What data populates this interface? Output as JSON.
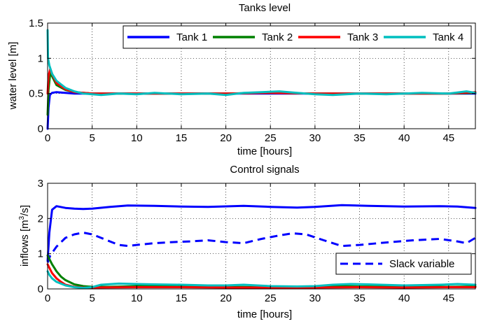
{
  "chart_data": [
    {
      "type": "line",
      "title": "Tanks level",
      "xlabel": "time [hours]",
      "ylabel": "water level [m]",
      "xlim": [
        0,
        48
      ],
      "ylim": [
        0,
        1.5
      ],
      "xticks": [
        "0",
        "5",
        "10",
        "15",
        "20",
        "25",
        "30",
        "35",
        "40",
        "45"
      ],
      "yticks": [
        "0",
        "0.5",
        "1",
        "1.5"
      ],
      "grid": true,
      "legend": "top-right, horizontal",
      "series": [
        {
          "name": "Tank 1",
          "color": "#0000ff",
          "style": "solid",
          "x": [
            0,
            0.1,
            0.25,
            0.5,
            1,
            2,
            3,
            5,
            10,
            15,
            20,
            25,
            30,
            35,
            40,
            45,
            48
          ],
          "y": [
            0.0,
            0.3,
            0.48,
            0.51,
            0.52,
            0.51,
            0.5,
            0.5,
            0.5,
            0.5,
            0.5,
            0.5,
            0.5,
            0.5,
            0.5,
            0.5,
            0.5
          ]
        },
        {
          "name": "Tank 2",
          "color": "#008000",
          "style": "solid",
          "x": [
            0,
            0.1,
            0.3,
            0.6,
            1,
            2,
            3,
            5,
            10,
            15,
            20,
            25,
            30,
            35,
            40,
            45,
            48
          ],
          "y": [
            0.2,
            0.55,
            0.8,
            0.72,
            0.62,
            0.55,
            0.52,
            0.5,
            0.5,
            0.5,
            0.5,
            0.51,
            0.5,
            0.5,
            0.5,
            0.5,
            0.51
          ]
        },
        {
          "name": "Tank 3",
          "color": "#ff0000",
          "style": "solid",
          "x": [
            0,
            0.1,
            0.3,
            0.6,
            1,
            2,
            3,
            5,
            10,
            15,
            20,
            25,
            30,
            35,
            40,
            45,
            48
          ],
          "y": [
            0.5,
            0.75,
            0.85,
            0.75,
            0.65,
            0.56,
            0.52,
            0.5,
            0.5,
            0.5,
            0.5,
            0.51,
            0.5,
            0.5,
            0.5,
            0.5,
            0.52
          ]
        },
        {
          "name": "Tank 4",
          "color": "#00bfbf",
          "style": "solid",
          "x": [
            0,
            0.05,
            0.2,
            0.5,
            1,
            2,
            3,
            4,
            5,
            6,
            8,
            10,
            12,
            15,
            18,
            20,
            22,
            24,
            26,
            28,
            30,
            32,
            35,
            38,
            40,
            42,
            45,
            47,
            48
          ],
          "y": [
            1.4,
            1.0,
            0.9,
            0.78,
            0.68,
            0.58,
            0.53,
            0.5,
            0.49,
            0.48,
            0.5,
            0.49,
            0.51,
            0.49,
            0.5,
            0.48,
            0.51,
            0.52,
            0.53,
            0.51,
            0.49,
            0.48,
            0.5,
            0.49,
            0.5,
            0.51,
            0.5,
            0.53,
            0.51
          ]
        }
      ]
    },
    {
      "type": "line",
      "title": "Control signals",
      "xlabel": "time [hours]",
      "ylabel": "inflows [m³/s]",
      "ylabel_main": "inflows [m",
      "ylabel_sup": "3",
      "ylabel_tail": "/s]",
      "xlim": [
        0,
        48
      ],
      "ylim": [
        0,
        3
      ],
      "xticks": [
        "0",
        "5",
        "10",
        "15",
        "20",
        "25",
        "30",
        "35",
        "40",
        "45"
      ],
      "yticks": [
        "0",
        "1",
        "2",
        "3"
      ],
      "grid": true,
      "legend": "bottom-right",
      "series": [
        {
          "name": "",
          "color": "#0000ff",
          "style": "solid",
          "x": [
            0,
            0.2,
            0.5,
            1,
            2,
            3,
            4,
            5,
            7,
            9,
            12,
            15,
            18,
            22,
            25,
            28,
            30,
            33,
            36,
            40,
            44,
            46,
            48
          ],
          "y": [
            0.8,
            1.6,
            2.25,
            2.35,
            2.3,
            2.28,
            2.27,
            2.28,
            2.33,
            2.37,
            2.36,
            2.34,
            2.33,
            2.36,
            2.33,
            2.31,
            2.33,
            2.38,
            2.36,
            2.34,
            2.35,
            2.34,
            2.3
          ]
        },
        {
          "name": "Slack variable",
          "color": "#0000ff",
          "style": "dashed",
          "x": [
            0,
            0.3,
            1,
            2,
            3,
            4,
            5,
            6,
            7,
            8,
            9,
            10,
            12,
            14,
            16,
            18,
            20,
            22,
            24,
            26,
            27.5,
            29,
            31,
            32,
            33,
            35,
            38,
            41,
            44,
            46,
            47,
            48
          ],
          "y": [
            0.75,
            0.95,
            1.2,
            1.45,
            1.55,
            1.6,
            1.55,
            1.45,
            1.35,
            1.25,
            1.22,
            1.25,
            1.3,
            1.33,
            1.35,
            1.38,
            1.33,
            1.3,
            1.42,
            1.52,
            1.58,
            1.55,
            1.38,
            1.3,
            1.22,
            1.25,
            1.32,
            1.38,
            1.42,
            1.35,
            1.3,
            1.45
          ]
        },
        {
          "name": "",
          "color": "#008000",
          "style": "solid",
          "x": [
            0,
            0.2,
            0.5,
            1,
            1.5,
            2,
            3,
            4,
            5,
            7,
            10,
            15,
            20,
            25,
            30,
            33,
            35,
            40,
            45,
            48
          ],
          "y": [
            0.95,
            0.85,
            0.7,
            0.5,
            0.35,
            0.25,
            0.13,
            0.08,
            0.06,
            0.06,
            0.08,
            0.07,
            0.06,
            0.05,
            0.05,
            0.08,
            0.07,
            0.06,
            0.06,
            0.07
          ]
        },
        {
          "name": "",
          "color": "#ff0000",
          "style": "solid",
          "x": [
            0,
            0.2,
            0.5,
            1,
            1.5,
            2,
            3,
            4,
            5,
            10,
            15,
            20,
            25,
            30,
            35,
            40,
            45,
            48
          ],
          "y": [
            0.7,
            0.6,
            0.45,
            0.3,
            0.2,
            0.12,
            0.06,
            0.04,
            0.04,
            0.05,
            0.05,
            0.04,
            0.04,
            0.04,
            0.05,
            0.04,
            0.05,
            0.05
          ]
        },
        {
          "name": "",
          "color": "#00bfbf",
          "style": "solid",
          "x": [
            0,
            0.2,
            0.5,
            1,
            2,
            3,
            4,
            5,
            6,
            8,
            10,
            12,
            15,
            18,
            20,
            22,
            25,
            28,
            30,
            32,
            34,
            36,
            40,
            44,
            46,
            48
          ],
          "y": [
            0.5,
            0.4,
            0.3,
            0.2,
            0.1,
            0.05,
            0.03,
            0.05,
            0.12,
            0.15,
            0.14,
            0.13,
            0.12,
            0.1,
            0.1,
            0.12,
            0.08,
            0.07,
            0.08,
            0.12,
            0.14,
            0.13,
            0.1,
            0.12,
            0.14,
            0.12
          ]
        }
      ]
    }
  ]
}
